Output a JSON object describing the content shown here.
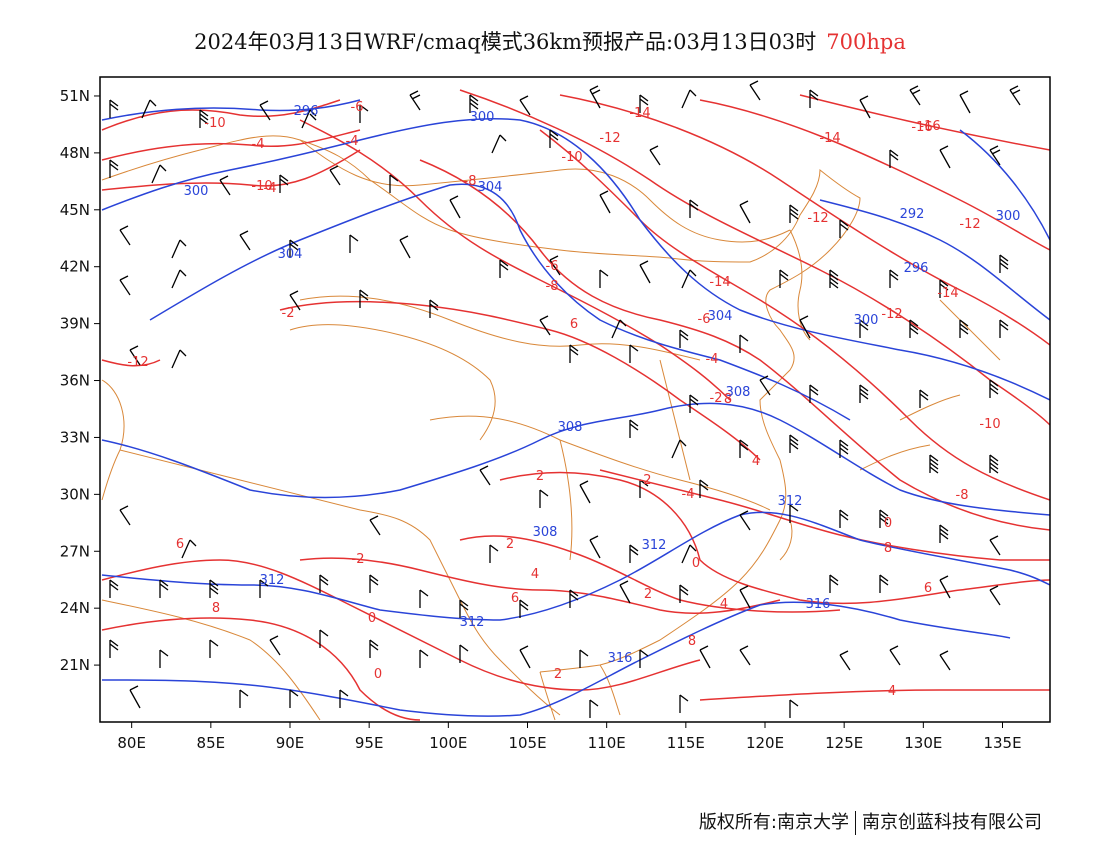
{
  "title": {
    "main": "2024年03月13日WRF/cmaq模式36km预报产品:03月13日03时",
    "level": "700hpa",
    "level_color": "#e53232"
  },
  "footer": {
    "owner": "版权所有:南京大学",
    "partner": "南京创蓝科技有限公司"
  },
  "map": {
    "lon_range": [
      78,
      138
    ],
    "lat_range": [
      18,
      52
    ],
    "lon_ticks": [
      "80E",
      "85E",
      "90E",
      "95E",
      "100E",
      "105E",
      "110E",
      "115E",
      "120E",
      "125E",
      "130E",
      "135E"
    ],
    "lat_ticks": [
      "51N",
      "48N",
      "45N",
      "42N",
      "39N",
      "36N",
      "33N",
      "30N",
      "27N",
      "24N",
      "21N"
    ],
    "temperature_color": "#e53232",
    "height_color": "#2a44d8",
    "border_color": "#d9883a",
    "wind_color": "#000000",
    "temperature_labels": [
      "-16",
      "-14",
      "-14",
      "-12",
      "-10",
      "-8",
      "-6",
      "-4",
      "-4",
      "-6",
      "-8",
      "-10",
      "-14",
      "-12",
      "-12",
      "-16",
      "-14",
      "-12",
      "-10",
      "-8",
      "-6",
      "-4",
      "-2",
      "0",
      "2",
      "4",
      "6",
      "8",
      "-2",
      "-4",
      "0",
      "2",
      "4",
      "6",
      "8",
      "-2",
      "-4",
      "0",
      "2",
      "4",
      "6",
      "8",
      "-10",
      "-12",
      "-2",
      "0",
      "2",
      "4",
      "6",
      "8"
    ],
    "height_labels": [
      "296",
      "300",
      "300",
      "304",
      "304",
      "300",
      "304",
      "308",
      "308",
      "312",
      "312",
      "316",
      "312",
      "316",
      "292",
      "296",
      "300",
      "312",
      "308"
    ]
  }
}
